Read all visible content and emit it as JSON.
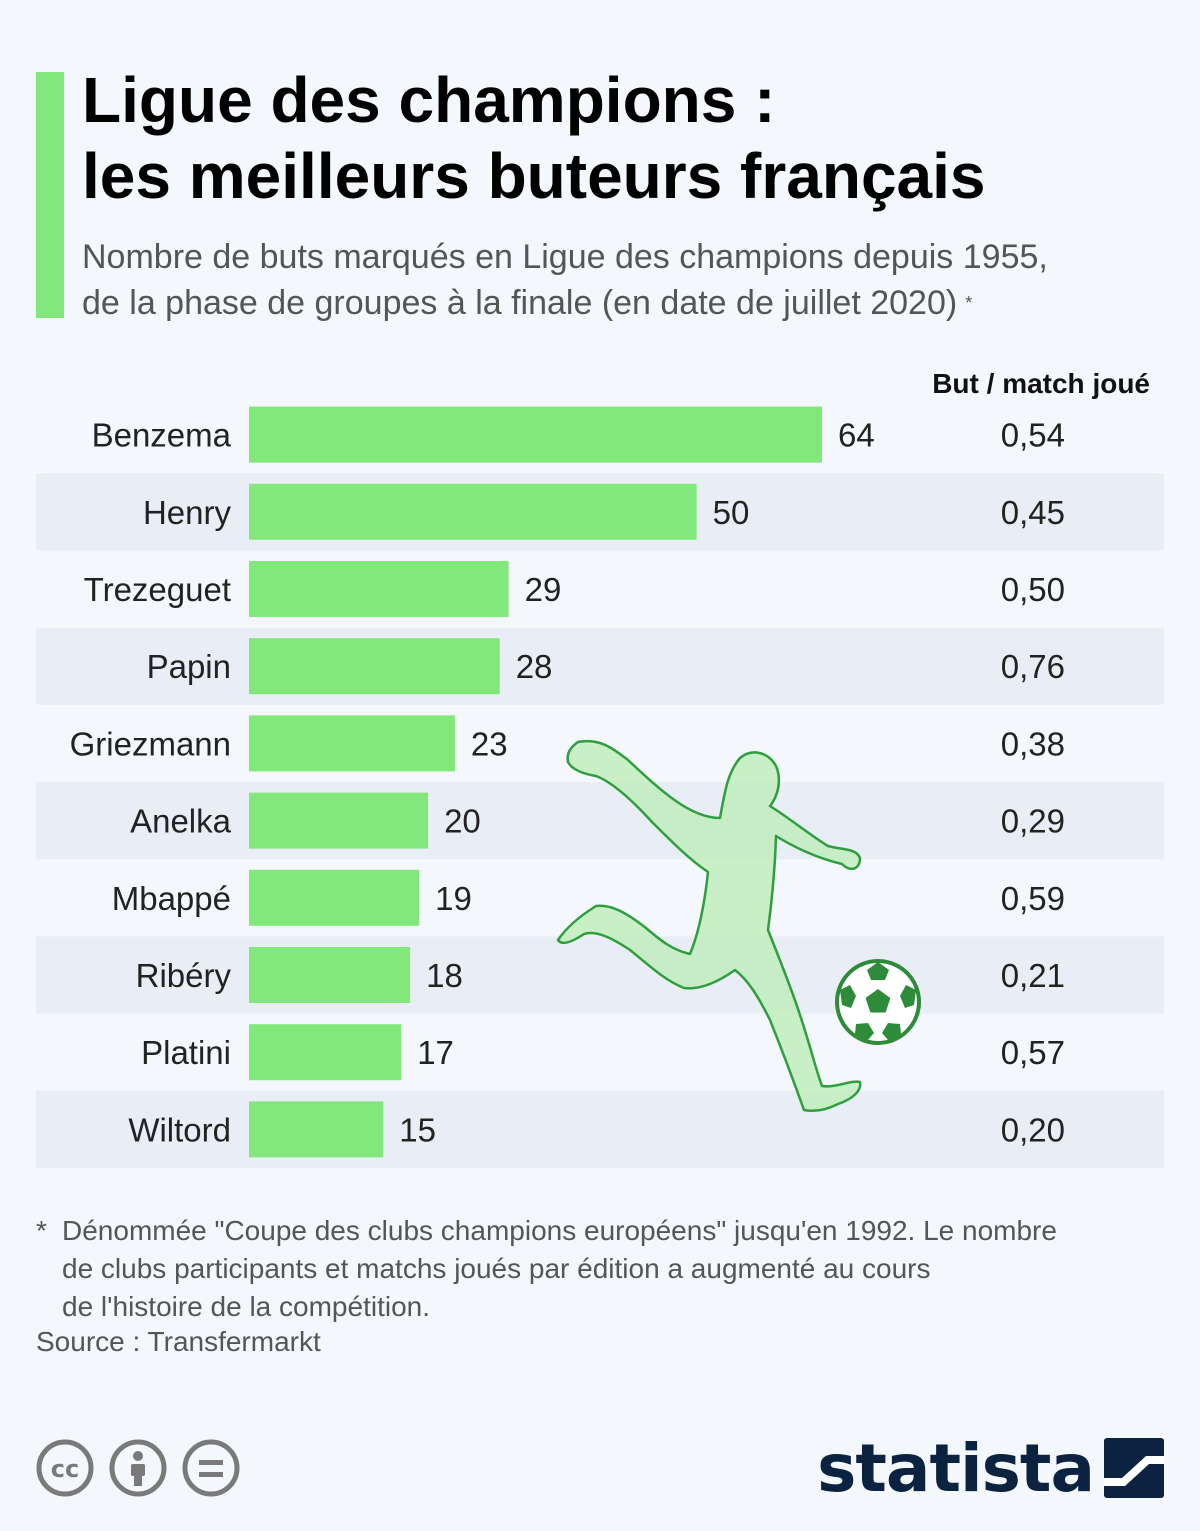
{
  "title": {
    "line1": "Ligue des champions :",
    "line2": "les meilleurs buteurs français"
  },
  "subtitle": {
    "line1": "Nombre de buts marqués en Ligue des champions depuis 1955,",
    "line2": "de la phase de groupes à la finale (en date de juillet 2020)",
    "marker": "*"
  },
  "column_header": "But / match joué",
  "chart_data": {
    "type": "bar",
    "orientation": "horizontal",
    "categories": [
      "Benzema",
      "Henry",
      "Trezeguet",
      "Papin",
      "Griezmann",
      "Anelka",
      "Mbappé",
      "Ribéry",
      "Platini",
      "Wiltord"
    ],
    "values": [
      64,
      50,
      29,
      28,
      23,
      20,
      19,
      18,
      17,
      15
    ],
    "ratio_labels": [
      "0,54",
      "0,45",
      "0,50",
      "0,76",
      "0,38",
      "0,29",
      "0,59",
      "0,21",
      "0,57",
      "0,20"
    ],
    "xlim": [
      0,
      64
    ],
    "grid": false,
    "bar_color": "#82e87c",
    "stripe_color": "#e9eef6"
  },
  "footnote": {
    "marker": "*",
    "line1": "Dénommée \"Coupe des clubs champions européens\" jusqu'en 1992. Le nombre",
    "line2": "de clubs participants et matchs joués par édition a augmenté au cours",
    "line3": "de l'histoire de la compétition."
  },
  "source": "Source : Transfermarkt",
  "license_icons": [
    "cc-icon",
    "attribution-icon",
    "no-derivatives-icon"
  ],
  "brand": {
    "name": "statista",
    "color": "#0b2340"
  },
  "decoration": [
    "footballer-silhouette-icon",
    "soccer-ball-icon"
  ]
}
